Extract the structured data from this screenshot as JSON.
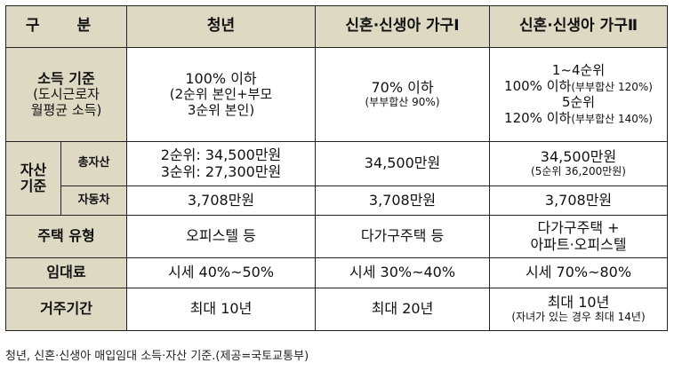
{
  "table": {
    "headers": [
      "구  분",
      "청년",
      "신혼·신생아 가구Ⅰ",
      "신혼·신생아 가구Ⅱ"
    ],
    "income": {
      "label": "소득 기준",
      "label_sub1": "(도시근로자",
      "label_sub2": "월평균 소득)",
      "youth1": "100% 이하",
      "youth2": "(2순위 본인+부모",
      "youth3": "3순위 본인)",
      "g1_1": "70% 이하",
      "g1_2": "(부부합산 90%)",
      "g2_1": "1~4순위",
      "g2_2": "100% 이하",
      "g2_2s": "(부부합산 120%)",
      "g2_3": "5순위",
      "g2_4": "120% 이하",
      "g2_4s": "(부부합산 140%)"
    },
    "asset": {
      "label1": "자산",
      "label2": "기준",
      "total_label": "총자산",
      "total_youth1": "2순위: 34,500만원",
      "total_youth2": "3순위: 27,300만원",
      "total_g1": "34,500만원",
      "total_g2_1": "34,500만원",
      "total_g2_2": "(5순위 36,200만원)",
      "car_label": "자동차",
      "car_youth": "3,708만원",
      "car_g1": "3,708만원",
      "car_g2": "3,708만원"
    },
    "housing": {
      "label": "주택 유형",
      "youth": "오피스텔 등",
      "g1": "다가구주택 등",
      "g2_1": "다가구주택 +",
      "g2_2": "아파트·오피스텔"
    },
    "rent": {
      "label": "임대료",
      "youth": "시세 40%~50%",
      "g1": "시세 30%~40%",
      "g2": "시세 70%~80%"
    },
    "period": {
      "label": "거주기간",
      "youth": "최대 10년",
      "g1": "최대 20년",
      "g2_1": "최대 10년",
      "g2_2": "(자녀가 있는 경우 최대 14년)"
    }
  },
  "caption": "청년, 신혼·신생아 매입임대 소득·자산 기준.(제공=국토교통부)"
}
